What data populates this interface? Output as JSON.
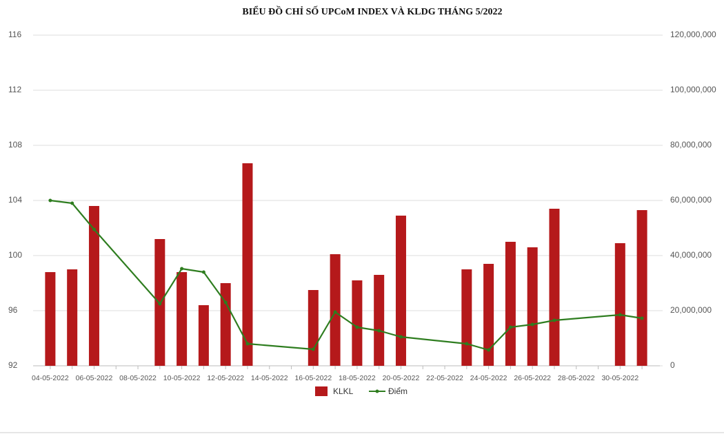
{
  "chart_data": {
    "type": "bar-line",
    "title": "BIỂU ĐỒ CHỈ SỐ UPCoM INDEX VÀ KLDG THÁNG 5/2022",
    "categories": [
      "04-05-2022",
      null,
      "06-05-2022",
      null,
      "08-05-2022",
      null,
      "10-05-2022",
      null,
      "12-05-2022",
      null,
      "14-05-2022",
      null,
      "16-05-2022",
      null,
      "18-05-2022",
      null,
      "20-05-2022",
      null,
      "22-05-2022",
      null,
      "24-05-2022",
      null,
      "26-05-2022",
      null,
      "28-05-2022",
      null,
      "30-05-2022",
      null
    ],
    "series": [
      {
        "name": "KLKL",
        "type": "bar",
        "axis": "y2",
        "color": "#b5191b",
        "values": [
          34000000,
          35000000,
          58000000,
          null,
          null,
          46000000,
          34000000,
          22000000,
          30000000,
          73500000,
          null,
          null,
          27500000,
          40500000,
          31000000,
          33000000,
          54500000,
          null,
          null,
          35000000,
          37000000,
          45000000,
          43000000,
          57000000,
          null,
          null,
          44500000,
          56500000
        ]
      },
      {
        "name": "Điểm",
        "type": "line",
        "axis": "y",
        "color": "#2e7d1f",
        "values": [
          104.0,
          103.8,
          101.9,
          null,
          null,
          96.5,
          99.05,
          98.8,
          96.6,
          93.6,
          null,
          null,
          93.2,
          95.9,
          94.8,
          94.55,
          94.1,
          null,
          null,
          93.6,
          93.15,
          94.8,
          95.0,
          95.3,
          null,
          null,
          95.7,
          95.45
        ]
      }
    ],
    "ylim": [
      92,
      116
    ],
    "yticks": [
      92,
      96,
      100,
      104,
      108,
      112,
      116
    ],
    "y2lim": [
      0,
      120000000
    ],
    "y2ticks": [
      0,
      {
        "value": 20000000,
        "label": "20,000,000"
      },
      {
        "value": 40000000,
        "label": "40,000,000"
      },
      {
        "value": 60000000,
        "label": "60,000,000"
      },
      {
        "value": 80000000,
        "label": "80,000,000"
      },
      {
        "value": 100000000,
        "label": "100,000,000"
      },
      {
        "value": 120000000,
        "label": "120,000,000"
      }
    ],
    "grid": true
  }
}
